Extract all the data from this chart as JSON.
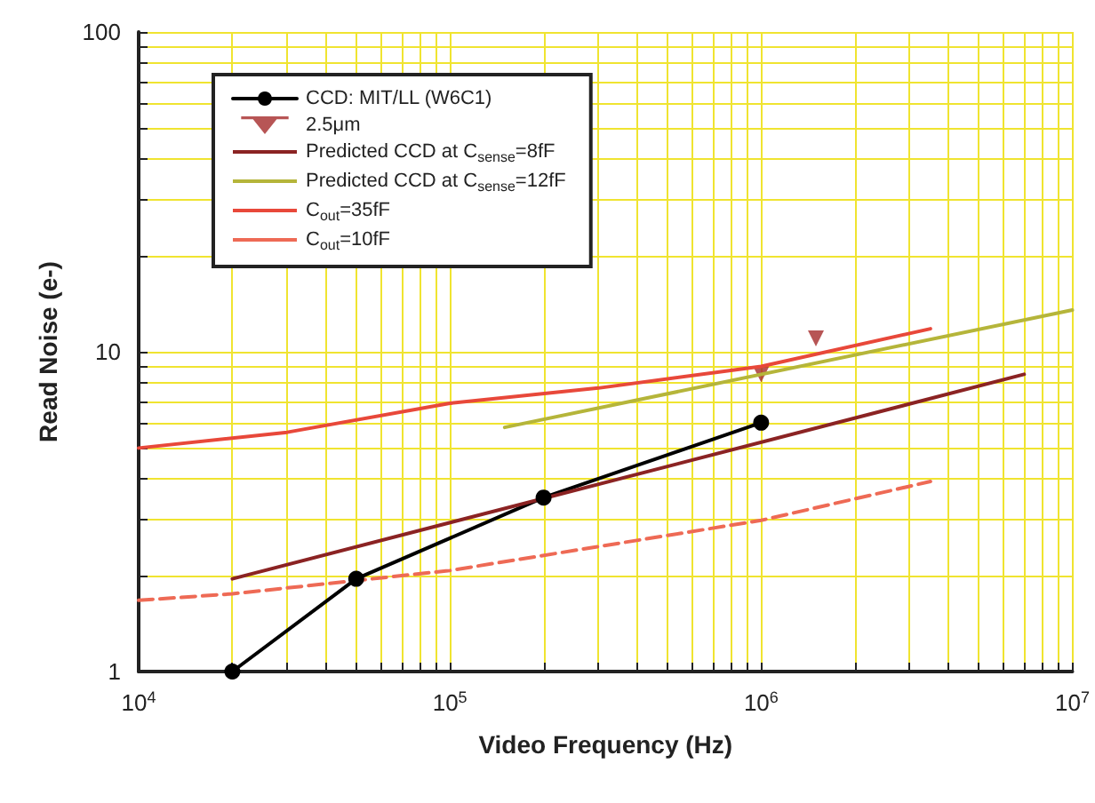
{
  "chart_data": {
    "type": "line",
    "xlabel": "Video Frequency (Hz)",
    "ylabel": "Read Noise (e-)",
    "log": "xy",
    "grid": true,
    "legend": "top left",
    "xlim": [
      10000,
      10000000
    ],
    "xticks": [
      {
        "value": 10000,
        "label": "10$^{4}$"
      },
      {
        "value": 20000,
        "label": null
      },
      {
        "value": 30000,
        "label": null
      },
      {
        "value": 40000,
        "label": null
      },
      {
        "value": 50000,
        "label": null
      },
      {
        "value": 60000,
        "label": null
      },
      {
        "value": 70000,
        "label": null
      },
      {
        "value": 80000,
        "label": null
      },
      {
        "value": 90000,
        "label": null
      },
      {
        "value": 100000,
        "label": "10$^{5}$"
      },
      {
        "value": 200000,
        "label": null
      },
      {
        "value": 300000,
        "label": null
      },
      {
        "value": 400000,
        "label": null
      },
      {
        "value": 500000,
        "label": null
      },
      {
        "value": 600000,
        "label": null
      },
      {
        "value": 700000,
        "label": null
      },
      {
        "value": 800000,
        "label": null
      },
      {
        "value": 900000,
        "label": null
      },
      {
        "value": 1000000,
        "label": "10$^{6}$"
      },
      {
        "value": 2000000,
        "label": null
      },
      {
        "value": 3000000,
        "label": null
      },
      {
        "value": 4000000,
        "label": null
      },
      {
        "value": 5000000,
        "label": null
      },
      {
        "value": 6000000,
        "label": null
      },
      {
        "value": 7000000,
        "label": null
      },
      {
        "value": 8000000,
        "label": null
      },
      {
        "value": 9000000,
        "label": null
      },
      {
        "value": 10000000,
        "label": "10$^{7}$"
      }
    ],
    "ylim": [
      1,
      100
    ],
    "yticks": [
      1,
      {
        "value": 2,
        "label": null
      },
      {
        "value": 3,
        "label": null
      },
      {
        "value": 4,
        "label": null
      },
      {
        "value": 5,
        "label": null
      },
      {
        "value": 6,
        "label": null
      },
      {
        "value": 7,
        "label": null
      },
      {
        "value": 8,
        "label": null
      },
      {
        "value": 9,
        "label": null
      },
      10,
      {
        "value": 20,
        "label": null
      },
      {
        "value": 30,
        "label": null
      },
      {
        "value": 40,
        "label": null
      },
      {
        "value": 50,
        "label": null
      },
      {
        "value": 60,
        "label": null
      },
      {
        "value": 70,
        "label": null
      },
      {
        "value": 80,
        "label": null
      },
      {
        "value": 90,
        "label": null
      },
      100
    ],
    "series": [
      {
        "name": "CCD: MIT/LL (W6C1)",
        "color": "#000000",
        "marker": "circle",
        "x": [
          20000,
          50000,
          200000,
          1000000
        ],
        "values": [
          1.0,
          1.95,
          3.5,
          6.0
        ]
      },
      {
        "name": "2.5μm",
        "type": "scatter",
        "color": "#a52a2a",
        "marker": "triangle",
        "x": [
          1000000,
          1500000
        ],
        "values": [
          8.5,
          11
        ]
      },
      {
        "name": "Predicted CCD at C$_{sense}$=8fF",
        "color": "#8b2323",
        "marker": "none",
        "x": [
          20000,
          7000000
        ],
        "values": [
          1.95,
          8.5
        ]
      },
      {
        "name": "Predicted CCD at C$_{sense}$=12fF",
        "color": "#b5b53a",
        "marker": "none",
        "x": [
          150000,
          10000000
        ],
        "values": [
          5.8,
          13.5
        ]
      },
      {
        "name": "C$_{out}$=35fF",
        "color": "#e8483a",
        "marker": "none",
        "x": [
          10000,
          30000,
          100000,
          300000,
          1000000,
          3500000
        ],
        "values": [
          5.0,
          5.6,
          6.9,
          7.7,
          9.0,
          11.8
        ]
      },
      {
        "name": "C$_{out}$=10fF",
        "color": "#ee6a55",
        "marker": "none",
        "line_style": "dashed",
        "x": [
          10000,
          20000,
          100000,
          1000000,
          3500000
        ],
        "values": [
          1.67,
          1.75,
          2.07,
          2.97,
          3.93
        ]
      }
    ]
  }
}
